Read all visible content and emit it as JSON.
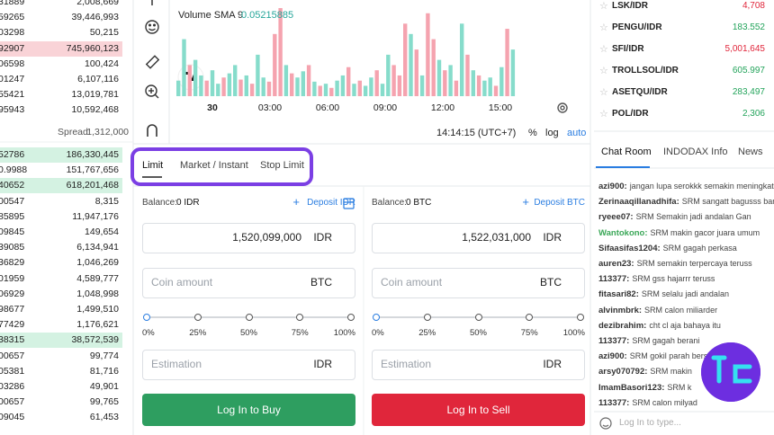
{
  "order_book": {
    "asks": [
      {
        "price": "31889",
        "amount": "2,008,669"
      },
      {
        "price": "59265",
        "amount": "39,446,993"
      },
      {
        "price": "03298",
        "amount": "50,215"
      },
      {
        "price": "92907",
        "amount": "745,960,123",
        "highlight": "#f9d3d7"
      },
      {
        "price": "06598",
        "amount": "100,424"
      },
      {
        "price": "01247",
        "amount": "6,107,116"
      },
      {
        "price": "55421",
        "amount": "13,019,781"
      },
      {
        "price": "95943",
        "amount": "10,592,468"
      }
    ],
    "spread_label": "Spread:",
    "spread": "1,312,000",
    "bids": [
      {
        "price": "52786",
        "amount": "186,330,445",
        "highlight": "#d4f2e2"
      },
      {
        "price": "0.9988",
        "amount": "151,767,656"
      },
      {
        "price": "40652",
        "amount": "618,201,468",
        "highlight": "#d4f2e2"
      },
      {
        "price": "00547",
        "amount": "8,315"
      },
      {
        "price": "85895",
        "amount": "11,947,176"
      },
      {
        "price": "09845",
        "amount": "149,654"
      },
      {
        "price": "39085",
        "amount": "6,134,941"
      },
      {
        "price": "36829",
        "amount": "1,046,269"
      },
      {
        "price": "01959",
        "amount": "4,589,777"
      },
      {
        "price": "06929",
        "amount": "1,048,998"
      },
      {
        "price": "98677",
        "amount": "1,499,510"
      },
      {
        "price": "77429",
        "amount": "1,176,621"
      },
      {
        "price": "38315",
        "amount": "38,572,539",
        "highlight": "#d4f2e2"
      },
      {
        "price": "00657",
        "amount": "99,774"
      },
      {
        "price": "05381",
        "amount": "81,716"
      },
      {
        "price": "03286",
        "amount": "49,901"
      },
      {
        "price": "00657",
        "amount": "99,765"
      },
      {
        "price": "09045",
        "amount": "61,453"
      }
    ]
  },
  "chart": {
    "indicator": "Volume SMA 9",
    "sma_value": "0.05215885",
    "volume": {
      "values": [
        15,
        55,
        30,
        35,
        20,
        15,
        25,
        12,
        18,
        22,
        30,
        16,
        20,
        12,
        40,
        18,
        14,
        60,
        85,
        30,
        22,
        18,
        24,
        30,
        14,
        10,
        12,
        8,
        15,
        20,
        28,
        12,
        15,
        10,
        18,
        25,
        12,
        40,
        30,
        20,
        70,
        60,
        45,
        20,
        80,
        55,
        35,
        25,
        30,
        15,
        70,
        40,
        25,
        20,
        15,
        18,
        10,
        28,
        65,
        45
      ],
      "rising": [
        true,
        true,
        false,
        true,
        true,
        false,
        true,
        true,
        false,
        true,
        true,
        false,
        true,
        false,
        true,
        true,
        false,
        false,
        false,
        true,
        false,
        true,
        true,
        false,
        true,
        false,
        true,
        false,
        true,
        true,
        false,
        true,
        false,
        true,
        true,
        false,
        true,
        true,
        false,
        false,
        false,
        true,
        false,
        true,
        false,
        false,
        true,
        false,
        true,
        false,
        true,
        false,
        true,
        false,
        true,
        true,
        false,
        true,
        false,
        true
      ],
      "up_color": "#86dccb",
      "down_color": "#f5a3af"
    },
    "time_labels": [
      "30",
      "03:00",
      "06:00",
      "09:00",
      "12:00",
      "15:00"
    ],
    "clock": "14:14:15 (UTC+7)",
    "scale_options": [
      "%",
      "log",
      "auto"
    ]
  },
  "order_form": {
    "tabs": [
      "Limit",
      "Market / Instant",
      "Stop Limit"
    ],
    "buy": {
      "balance_label": "Balance:",
      "balance": "0 IDR",
      "deposit": "Deposit IDR",
      "price": "1,520,099,000",
      "price_unit": "IDR",
      "amount_placeholder": "Coin amount",
      "amount_unit": "BTC",
      "percent_labels": [
        "0%",
        "25%",
        "50%",
        "75%",
        "100%"
      ],
      "estimation_placeholder": "Estimation",
      "estimation_unit": "IDR",
      "button": "Log In to Buy"
    },
    "sell": {
      "balance_label": "Balance:",
      "balance": "0 BTC",
      "deposit": "Deposit BTC",
      "price": "1,522,031,000",
      "price_unit": "IDR",
      "amount_placeholder": "Coin amount",
      "amount_unit": "BTC",
      "percent_labels": [
        "0%",
        "25%",
        "50%",
        "75%",
        "100%"
      ],
      "estimation_placeholder": "Estimation",
      "estimation_unit": "IDR",
      "button": "Log In to Sell"
    }
  },
  "tickers": [
    {
      "pair": "LSK/IDR",
      "price": "4,708",
      "color": "#e0263b"
    },
    {
      "pair": "PENGU/IDR",
      "price": "183.552",
      "color": "#22a35a"
    },
    {
      "pair": "SFI/IDR",
      "price": "5,001,645",
      "color": "#e0263b"
    },
    {
      "pair": "TROLLSOL/IDR",
      "price": "605.997",
      "color": "#22a35a"
    },
    {
      "pair": "ASETQU/IDR",
      "price": "283,497",
      "color": "#22a35a"
    },
    {
      "pair": "POL/IDR",
      "price": "2,306",
      "color": "#22a35a"
    }
  ],
  "chat": {
    "tabs": [
      "Chat Room",
      "INDODAX Info",
      "News"
    ],
    "messages": [
      {
        "user": "azi900:",
        "text": "jangan lupa serokkk semakin meningkat"
      },
      {
        "user": "Zerinaaqillanadhifa:",
        "text": "SRM sangatt bagusss banget"
      },
      {
        "user": "ryeee07:",
        "text": "SRM Semakin jadi andalan Gan"
      },
      {
        "user": "Wantokono:",
        "text": "SRM makin gacor juara umum",
        "user_color": "#3aa757"
      },
      {
        "user": "Sifaasifas1204:",
        "text": "SRM gagah perkasa"
      },
      {
        "user": "auren23:",
        "text": "SRM semakin terpercaya teruss"
      },
      {
        "user": "113377:",
        "text": "SRM gss hajarrr teruss"
      },
      {
        "user": "fitasari82:",
        "text": "SRM selalu jadi andalan"
      },
      {
        "user": "alvinmbrk:",
        "text": "SRM calon miliarder"
      },
      {
        "user": "dezibrahim:",
        "text": "cht cl aja bahaya itu"
      },
      {
        "user": "113377:",
        "text": "SRM gagah berani"
      },
      {
        "user": "azi900:",
        "text": "SRM gokil parah bersi"
      },
      {
        "user": "arsy070792:",
        "text": "SRM makin"
      },
      {
        "user": "ImamBasori123:",
        "text": "SRM k"
      },
      {
        "user": "113377:",
        "text": "SRM calon milyad"
      }
    ],
    "input_placeholder": "Log In to type..."
  }
}
